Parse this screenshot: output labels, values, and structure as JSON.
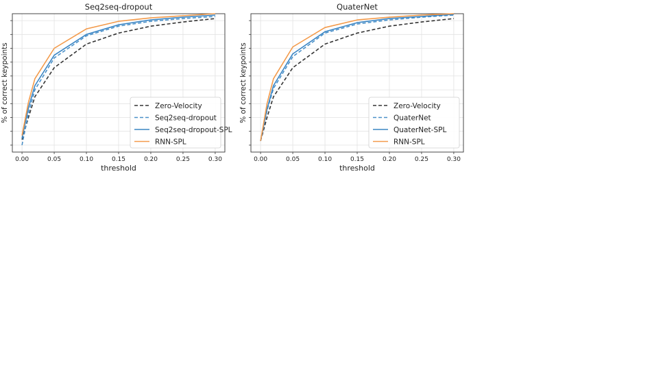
{
  "chart_data": [
    {
      "type": "line",
      "title": "Seq2seq-dropout",
      "xlabel": "threshold",
      "ylabel": "% of correct keypoints",
      "xlim": [
        -0.015,
        0.315
      ],
      "ylim": [
        0,
        1
      ],
      "xticks": [
        "0.00",
        "0.05",
        "0.10",
        "0.15",
        "0.20",
        "0.25",
        "0.30"
      ],
      "grid": true,
      "legend_position": "lower-right",
      "x": [
        0.0,
        0.01,
        0.02,
        0.05,
        0.1,
        0.15,
        0.2,
        0.25,
        0.3
      ],
      "series": [
        {
          "name": "Zero-Velocity",
          "color": "#333333",
          "dash": "dashed",
          "values": [
            0.09,
            0.25,
            0.4,
            0.61,
            0.78,
            0.86,
            0.91,
            0.94,
            0.965
          ]
        },
        {
          "name": "Seq2seq-dropout",
          "color": "#4a90c8",
          "dash": "dashed",
          "values": [
            0.05,
            0.28,
            0.45,
            0.68,
            0.84,
            0.91,
            0.945,
            0.965,
            0.98
          ]
        },
        {
          "name": "Seq2seq-dropout-SPL",
          "color": "#3a85c4",
          "dash": "solid",
          "values": [
            0.1,
            0.32,
            0.48,
            0.7,
            0.85,
            0.92,
            0.955,
            0.975,
            0.99
          ]
        },
        {
          "name": "RNN-SPL",
          "color": "#f39a4a",
          "dash": "solid",
          "values": [
            0.12,
            0.36,
            0.53,
            0.75,
            0.89,
            0.945,
            0.97,
            0.985,
            1.0
          ]
        }
      ]
    },
    {
      "type": "line",
      "title": "QuaterNet",
      "xlabel": "threshold",
      "ylabel": "% of correct keypoints",
      "xlim": [
        -0.015,
        0.315
      ],
      "ylim": [
        0,
        1
      ],
      "xticks": [
        "0.00",
        "0.05",
        "0.10",
        "0.15",
        "0.20",
        "0.25",
        "0.30"
      ],
      "grid": true,
      "legend_position": "lower-right",
      "x": [
        0.0,
        0.01,
        0.02,
        0.05,
        0.1,
        0.15,
        0.2,
        0.25,
        0.3
      ],
      "series": [
        {
          "name": "Zero-Velocity",
          "color": "#333333",
          "dash": "dashed",
          "values": [
            0.08,
            0.25,
            0.4,
            0.61,
            0.78,
            0.86,
            0.91,
            0.94,
            0.965
          ]
        },
        {
          "name": "QuaterNet",
          "color": "#4a90c8",
          "dash": "dashed",
          "values": [
            0.08,
            0.3,
            0.46,
            0.69,
            0.86,
            0.925,
            0.955,
            0.975,
            0.99
          ]
        },
        {
          "name": "QuaterNet-SPL",
          "color": "#3a85c4",
          "dash": "solid",
          "values": [
            0.08,
            0.31,
            0.48,
            0.71,
            0.87,
            0.935,
            0.965,
            0.98,
            0.995
          ]
        },
        {
          "name": "RNN-SPL",
          "color": "#f39a4a",
          "dash": "solid",
          "values": [
            0.08,
            0.35,
            0.53,
            0.76,
            0.9,
            0.955,
            0.975,
            0.99,
            1.0
          ]
        }
      ]
    }
  ]
}
